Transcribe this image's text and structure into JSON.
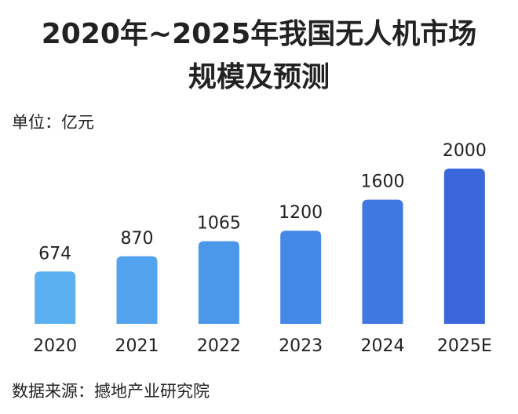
{
  "chart_data": {
    "type": "bar",
    "title": [
      "2020年~2025年我国无人机市场",
      "规模及预测"
    ],
    "unit": "单位：亿元",
    "source": "数据来源：撼地产业研究院",
    "categories": [
      "2020",
      "2021",
      "2022",
      "2023",
      "2024",
      "2025E"
    ],
    "values": [
      674,
      870,
      1065,
      1200,
      1600,
      2000
    ],
    "colors": [
      "#5ab0f0",
      "#53a4ee",
      "#4b97ea",
      "#4589e6",
      "#3f78e0",
      "#3a67dc"
    ]
  }
}
